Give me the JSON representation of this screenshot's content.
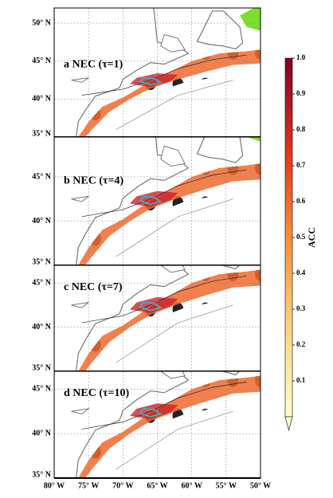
{
  "chart_data": {
    "type": "map",
    "panels": [
      {
        "label": "a NEC (τ=1)",
        "ylim": [
          35,
          52
        ],
        "yticks": [
          {
            "value": 50,
            "label": "50° N"
          },
          {
            "value": 45,
            "label": "45° N"
          },
          {
            "value": 40,
            "label": "40° N"
          },
          {
            "value": 35,
            "label": "35° N"
          }
        ]
      },
      {
        "label": "b NEC (τ=4)",
        "ylim": [
          35,
          49.5
        ],
        "yticks": [
          {
            "value": 45,
            "label": "45° N"
          },
          {
            "value": 40,
            "label": "40° N"
          },
          {
            "value": 35,
            "label": "35° N"
          }
        ]
      },
      {
        "label": "c NEC (τ=7)",
        "ylim": [
          35,
          47
        ],
        "yticks": [
          {
            "value": 45,
            "label": "45° N"
          },
          {
            "value": 40,
            "label": "40° N"
          },
          {
            "value": 35,
            "label": "35° N"
          }
        ]
      },
      {
        "label": "d NEC (τ=10)",
        "ylim": [
          35,
          47
        ],
        "yticks": [
          {
            "value": 45,
            "label": "45° N"
          },
          {
            "value": 40,
            "label": "40° N"
          },
          {
            "value": 35,
            "label": "35° N"
          }
        ]
      }
    ],
    "xlim": [
      -80,
      -50
    ],
    "xticks": [
      {
        "value": -80,
        "label": "80° W"
      },
      {
        "value": -75,
        "label": "75° W"
      },
      {
        "value": -70,
        "label": "70° W"
      },
      {
        "value": -65,
        "label": "65° W"
      },
      {
        "value": -60,
        "label": "60° W"
      },
      {
        "value": -55,
        "label": "55° W"
      },
      {
        "value": -50,
        "label": "50° W"
      }
    ],
    "colorbar": {
      "label": "ACC",
      "lim": [
        0,
        1
      ],
      "ticks": [
        0.1,
        0.2,
        0.3,
        0.4,
        0.5,
        0.6,
        0.7,
        0.8,
        0.9,
        {
          "value": 1,
          "label": "1.0"
        }
      ]
    }
  }
}
